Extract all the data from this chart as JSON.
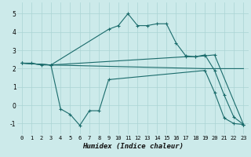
{
  "xlabel": "Humidex (Indice chaleur)",
  "bg_color": "#cceaea",
  "grid_color": "#aad4d4",
  "line_color": "#1a6b6b",
  "xlim": [
    -0.5,
    23.5
  ],
  "ylim": [
    -1.6,
    5.6
  ],
  "xticks": [
    0,
    1,
    2,
    3,
    4,
    5,
    6,
    7,
    8,
    9,
    10,
    11,
    12,
    13,
    14,
    15,
    16,
    17,
    18,
    19,
    20,
    21,
    22,
    23
  ],
  "yticks": [
    -1,
    0,
    1,
    2,
    3,
    4,
    5
  ],
  "series1": [
    [
      0,
      2.3
    ],
    [
      1,
      2.3
    ],
    [
      2,
      2.2
    ],
    [
      3,
      2.2
    ],
    [
      4,
      -0.2
    ],
    [
      5,
      -0.5
    ],
    [
      6,
      -1.1
    ],
    [
      7,
      -0.3
    ],
    [
      8,
      -0.3
    ],
    [
      9,
      1.4
    ],
    [
      19,
      1.9
    ],
    [
      20,
      0.7
    ],
    [
      21,
      -0.7
    ],
    [
      22,
      -1.0
    ],
    [
      23,
      -1.05
    ]
  ],
  "series2": [
    [
      0,
      2.3
    ],
    [
      3,
      2.2
    ],
    [
      9,
      4.15
    ],
    [
      10,
      4.35
    ],
    [
      11,
      5.0
    ],
    [
      12,
      4.35
    ],
    [
      13,
      4.35
    ],
    [
      14,
      4.45
    ],
    [
      15,
      4.45
    ],
    [
      16,
      3.4
    ],
    [
      17,
      2.7
    ],
    [
      18,
      2.65
    ],
    [
      19,
      2.75
    ],
    [
      20,
      1.9
    ],
    [
      21,
      0.55
    ],
    [
      22,
      -0.65
    ],
    [
      23,
      -1.05
    ]
  ],
  "series3": [
    [
      0,
      2.3
    ],
    [
      3,
      2.2
    ],
    [
      17,
      2.65
    ],
    [
      18,
      2.65
    ],
    [
      19,
      2.7
    ],
    [
      20,
      2.75
    ],
    [
      23,
      -1.05
    ]
  ],
  "series4": [
    [
      0,
      2.3
    ],
    [
      3,
      2.2
    ],
    [
      19,
      2.0
    ],
    [
      23,
      2.0
    ]
  ]
}
